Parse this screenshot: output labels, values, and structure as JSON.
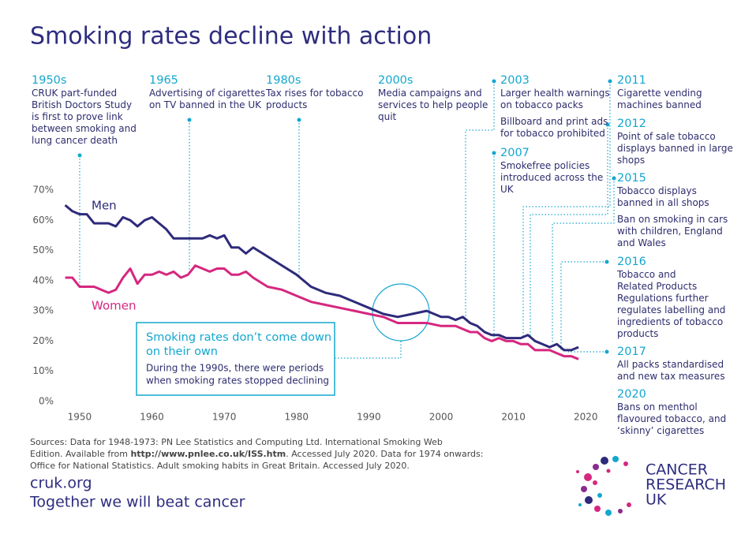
{
  "chart_data": {
    "type": "line",
    "title": "Smoking rates decline with action",
    "x": [
      1948,
      1949,
      1950,
      1951,
      1952,
      1953,
      1954,
      1955,
      1956,
      1957,
      1958,
      1959,
      1960,
      1961,
      1962,
      1963,
      1964,
      1965,
      1966,
      1967,
      1968,
      1969,
      1970,
      1971,
      1972,
      1973,
      1974,
      1976,
      1978,
      1980,
      1982,
      1984,
      1986,
      1988,
      1990,
      1992,
      1994,
      1996,
      1998,
      2000,
      2001,
      2002,
      2003,
      2004,
      2005,
      2006,
      2007,
      2008,
      2009,
      2010,
      2011,
      2012,
      2013,
      2014,
      2015,
      2016,
      2017,
      2018,
      2019
    ],
    "series": [
      {
        "name": "Men",
        "color": "#2e2a7a",
        "values": [
          65,
          63,
          62,
          62,
          59,
          59,
          59,
          58,
          61,
          60,
          58,
          60,
          61,
          59,
          57,
          54,
          54,
          54,
          54,
          54,
          55,
          54,
          55,
          51,
          51,
          49,
          51,
          48,
          45,
          42,
          38,
          36,
          35,
          33,
          31,
          29,
          28,
          29,
          30,
          28,
          28,
          27,
          28,
          26,
          25,
          23,
          22,
          22,
          21,
          21,
          21,
          22,
          20,
          19,
          18,
          19,
          17,
          17,
          18
        ]
      },
      {
        "name": "Women",
        "color": "#d6277f",
        "values": [
          41,
          41,
          38,
          38,
          38,
          37,
          36,
          37,
          41,
          44,
          39,
          42,
          42,
          43,
          42,
          43,
          41,
          42,
          45,
          44,
          43,
          44,
          44,
          42,
          42,
          43,
          41,
          38,
          37,
          35,
          33,
          32,
          31,
          30,
          29,
          28,
          26,
          26,
          26,
          25,
          25,
          25,
          24,
          23,
          23,
          21,
          20,
          21,
          20,
          20,
          19,
          19,
          17,
          17,
          17,
          16,
          15,
          15,
          14
        ]
      }
    ],
    "xlim": [
      1947.5,
      2021.5
    ],
    "xticks": [
      1950,
      1960,
      1970,
      1980,
      1990,
      2000,
      2010,
      2020
    ],
    "ylim": [
      0,
      70
    ],
    "yticks": [
      {
        "value": 0,
        "label": "0%"
      },
      {
        "value": 10,
        "label": "10%"
      },
      {
        "value": 20,
        "label": "20%"
      },
      {
        "value": 30,
        "label": "30%"
      },
      {
        "value": 40,
        "label": "40%"
      },
      {
        "value": 50,
        "label": "50%"
      },
      {
        "value": 60,
        "label": "60%"
      },
      {
        "value": 70,
        "label": "70%"
      }
    ],
    "grid": false
  },
  "annotations": [
    {
      "title": "1950s",
      "lines": [
        "CRUK part-funded",
        "British Doctors Study",
        "is first to prove link",
        "between smoking and",
        "lung cancer death"
      ]
    },
    {
      "title": "1965",
      "lines": [
        "Advertising of cigarettes",
        "on TV banned in the UK"
      ]
    },
    {
      "title": "1980s",
      "lines": [
        "Tax rises for tobacco",
        "products"
      ]
    },
    {
      "title": "2000s",
      "lines": [
        "Media campaigns and",
        "services to help people",
        "quit"
      ]
    },
    {
      "title": "2003",
      "lines": [
        "Larger health warnings",
        "on tobacco packs"
      ],
      "note": [
        "Billboard and print ads",
        "for tobacco prohibited"
      ]
    },
    {
      "title": "2007",
      "lines": [
        "Smokefree policies",
        "introduced across the",
        "UK"
      ]
    },
    {
      "title": "2011",
      "lines": [
        "Cigarette vending",
        "machines banned"
      ]
    },
    {
      "title": "2012",
      "lines": [
        "Point of sale tobacco",
        "displays banned in large",
        "shops"
      ]
    },
    {
      "title": "2015",
      "lines": [
        "Tobacco  displays",
        "banned in all shops"
      ],
      "note": [
        "Ban on smoking in cars",
        "with children, England",
        "and Wales"
      ]
    },
    {
      "title": "2016",
      "lines": [
        "Tobacco and",
        "Related Products",
        "Regulations further",
        "regulates labelling and",
        "ingredients of tobacco",
        "products"
      ]
    },
    {
      "title": "2017",
      "lines": [
        "All packs standardised",
        "and new tax measures"
      ]
    },
    {
      "title": "2020",
      "lines": [
        "Bans on menthol",
        "flavoured tobacco, and",
        "‘skinny’ cigarettes"
      ]
    }
  ],
  "callout": {
    "title": [
      "Smoking rates don’t come down",
      "on their own"
    ],
    "text": [
      "During the 1990s, there were periods",
      "when smoking rates stopped declining"
    ]
  },
  "sources": [
    [
      "Sources: Data for 1948-1973: PN Lee Statistics and Computing Ltd. International Smoking Web"
    ],
    [
      "Edition. Available from ",
      "http://www.pnlee.co.uk/ISS.htm",
      ". Accessed July 2020. Data for 1974 onwards:"
    ],
    [
      "Office for National Statistics. Adult smoking habits in Great Britain. Accessed July 2020."
    ]
  ],
  "footer": {
    "url": "cruk.org",
    "tagline": "Together we will beat cancer"
  },
  "logo": [
    "CANCER",
    "RESEARCH",
    "UK"
  ]
}
